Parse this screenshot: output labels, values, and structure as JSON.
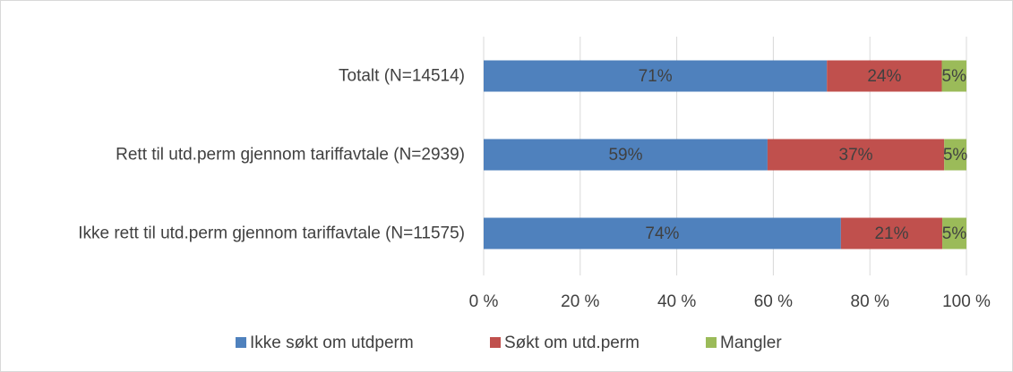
{
  "chart_data": {
    "type": "stacked_bar_horizontal",
    "categories": [
      "Totalt (N=14514)",
      "Rett til utd.perm gjennom tariffavtale (N=2939)",
      "Ikke rett til utd.perm gjennom tariffavtale (N=11575)"
    ],
    "series": [
      {
        "name": "Ikke søkt om utdperm",
        "color": "#4f81bd",
        "values": [
          71.1,
          58.8,
          74
        ],
        "value_labels": [
          "71%",
          "59%",
          "74%"
        ]
      },
      {
        "name": "Søkt om utd.perm",
        "color": "#c0504d",
        "values": [
          23.8,
          36.6,
          21
        ],
        "value_labels": [
          "24%",
          "37%",
          "21%"
        ]
      },
      {
        "name": "Mangler",
        "color": "#9bbb59",
        "values": [
          5.1,
          4.6,
          5
        ],
        "value_labels": [
          "5%",
          "5%",
          "5%"
        ]
      }
    ],
    "xlim": [
      0,
      100
    ],
    "xticks": [
      {
        "value": 0,
        "label": "0 %"
      },
      {
        "value": 20,
        "label": "20 %"
      },
      {
        "value": 40,
        "label": "40 %"
      },
      {
        "value": 60,
        "label": "60 %"
      },
      {
        "value": 80,
        "label": "80 %"
      },
      {
        "value": 100,
        "label": "100 %"
      }
    ],
    "grid": true,
    "legend": "bottom"
  }
}
